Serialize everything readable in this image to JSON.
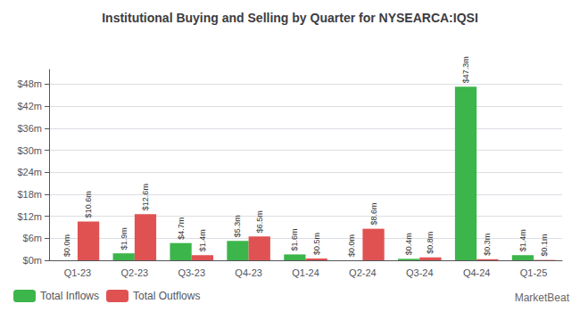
{
  "chart_data": {
    "type": "bar",
    "title": "Institutional Buying and Selling by Quarter for NYSEARCA:IQSI",
    "categories": [
      "Q1-23",
      "Q2-23",
      "Q3-23",
      "Q4-23",
      "Q1-24",
      "Q2-24",
      "Q3-24",
      "Q4-24",
      "Q1-25"
    ],
    "series": [
      {
        "name": "Total Inflows",
        "color": "#3cb54a",
        "values": [
          0.0,
          1.9,
          4.7,
          5.3,
          1.6,
          0.0,
          0.4,
          47.3,
          1.4
        ],
        "value_labels": [
          "$0.0m",
          "$1.9m",
          "$4.7m",
          "$5.3m",
          "$1.6m",
          "$0.0m",
          "$0.4m",
          "$47.3m",
          "$1.4m"
        ]
      },
      {
        "name": "Total Outflows",
        "color": "#e05252",
        "values": [
          10.6,
          12.6,
          1.4,
          6.5,
          0.5,
          8.6,
          0.8,
          0.3,
          0.1
        ],
        "value_labels": [
          "$10.6m",
          "$12.6m",
          "$1.4m",
          "$6.5m",
          "$0.5m",
          "$8.6m",
          "$0.8m",
          "$0.3m",
          "$0.1m"
        ]
      }
    ],
    "ylim": [
      0,
      52
    ],
    "yticks": [
      {
        "value": 0,
        "label": "$0m"
      },
      {
        "value": 6,
        "label": "$6m"
      },
      {
        "value": 12,
        "label": "$12m"
      },
      {
        "value": 18,
        "label": "$18m"
      },
      {
        "value": 24,
        "label": "$24m"
      },
      {
        "value": 30,
        "label": "$30m"
      },
      {
        "value": 36,
        "label": "$36m"
      },
      {
        "value": 42,
        "label": "$42m"
      },
      {
        "value": 48,
        "label": "$48m"
      }
    ],
    "grid": true,
    "data_labels": true,
    "legend": "lower left",
    "annotation": "MarketBeat"
  }
}
